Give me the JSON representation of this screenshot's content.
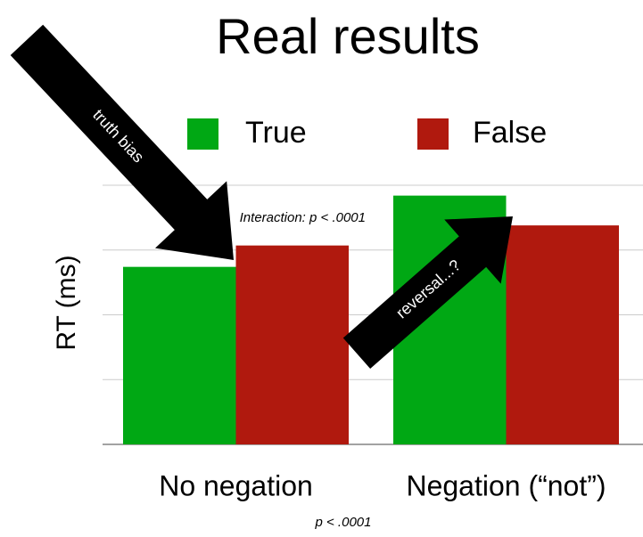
{
  "chart_data": {
    "type": "bar",
    "title": "Real results",
    "y_label": "RT (ms)",
    "categories": [
      "No negation",
      "Negation (“not”)"
    ],
    "series": [
      {
        "name": "True",
        "color": "#00a814",
        "values": [
          2.74,
          3.84
        ]
      },
      {
        "name": "False",
        "color": "#b0190e",
        "values": [
          3.07,
          3.38
        ]
      }
    ],
    "ylim": [
      0,
      4
    ],
    "yticks": [
      0,
      1,
      2,
      3,
      4
    ],
    "grid": true,
    "annotations": {
      "interaction": "Interaction: p < .0001",
      "main_effect": "p < .0001",
      "arrow_1": "truth bias",
      "arrow_2": "reversal...?"
    }
  }
}
